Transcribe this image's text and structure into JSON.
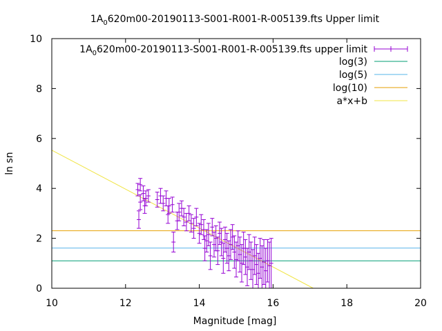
{
  "chart_data": {
    "type": "scatter",
    "title": {
      "prefix": "1A",
      "subscript": "0",
      "suffix": "620m00-20190113-S001-R001-R-005139.fts Upper limit"
    },
    "xlabel": "Magnitude [mag]",
    "ylabel": "ln sn",
    "xlim": [
      10,
      20
    ],
    "ylim": [
      0,
      10
    ],
    "x_ticks": [
      10,
      12,
      14,
      16,
      18,
      20
    ],
    "y_ticks": [
      0,
      2,
      4,
      6,
      8,
      10
    ],
    "grid": false,
    "legend_position": "top-right",
    "series": [
      {
        "name": {
          "prefix": "1A",
          "subscript": "0",
          "suffix": "620m00-20190113-S001-R001-R-005139.fts upper limit"
        },
        "kind": "errorbar",
        "color": "#9400d3",
        "points": [
          [
            12.33,
            3.95,
            0.25
          ],
          [
            12.4,
            4.15,
            0.25
          ],
          [
            12.36,
            2.75,
            0.35
          ],
          [
            12.4,
            3.45,
            0.3
          ],
          [
            12.48,
            3.8,
            0.3
          ],
          [
            12.55,
            3.6,
            0.3
          ],
          [
            12.62,
            3.7,
            0.25
          ],
          [
            12.52,
            3.3,
            0.3
          ],
          [
            12.86,
            3.55,
            0.3
          ],
          [
            12.95,
            3.7,
            0.3
          ],
          [
            13.02,
            3.4,
            0.3
          ],
          [
            13.1,
            3.6,
            0.3
          ],
          [
            13.18,
            3.3,
            0.3
          ],
          [
            13.15,
            2.95,
            0.35
          ],
          [
            13.27,
            3.35,
            0.3
          ],
          [
            13.3,
            1.85,
            0.4
          ],
          [
            13.4,
            2.7,
            0.35
          ],
          [
            13.45,
            3.05,
            0.35
          ],
          [
            13.52,
            3.2,
            0.3
          ],
          [
            13.58,
            2.85,
            0.35
          ],
          [
            13.65,
            2.65,
            0.35
          ],
          [
            13.72,
            3.0,
            0.3
          ],
          [
            13.78,
            2.6,
            0.35
          ],
          [
            13.85,
            2.4,
            0.4
          ],
          [
            13.92,
            2.85,
            0.35
          ],
          [
            14.0,
            2.2,
            0.4
          ],
          [
            14.05,
            2.55,
            0.4
          ],
          [
            14.12,
            2.35,
            0.4
          ],
          [
            14.15,
            1.6,
            0.5
          ],
          [
            14.2,
            1.9,
            0.45
          ],
          [
            14.25,
            2.15,
            0.45
          ],
          [
            14.3,
            1.3,
            0.55
          ],
          [
            14.35,
            2.45,
            0.35
          ],
          [
            14.4,
            1.75,
            0.5
          ],
          [
            14.45,
            2.0,
            0.5
          ],
          [
            14.5,
            1.5,
            0.55
          ],
          [
            14.55,
            2.2,
            0.45
          ],
          [
            14.6,
            1.85,
            0.55
          ],
          [
            14.65,
            1.2,
            0.6
          ],
          [
            14.7,
            1.95,
            0.5
          ],
          [
            14.75,
            1.6,
            0.6
          ],
          [
            14.8,
            1.3,
            0.6
          ],
          [
            14.85,
            1.75,
            0.6
          ],
          [
            14.9,
            2.05,
            0.5
          ],
          [
            14.95,
            1.45,
            0.65
          ],
          [
            15.0,
            1.15,
            0.7
          ],
          [
            15.05,
            1.7,
            0.6
          ],
          [
            15.1,
            1.35,
            0.7
          ],
          [
            15.15,
            1.0,
            0.75
          ],
          [
            15.2,
            1.6,
            0.65
          ],
          [
            15.25,
            1.25,
            0.7
          ],
          [
            15.3,
            0.85,
            0.75
          ],
          [
            15.35,
            1.45,
            0.7
          ],
          [
            15.4,
            1.1,
            0.75
          ],
          [
            15.45,
            0.75,
            0.8
          ],
          [
            15.5,
            1.3,
            0.75
          ],
          [
            15.55,
            0.95,
            0.8
          ],
          [
            15.6,
            0.6,
            0.8
          ],
          [
            15.65,
            1.2,
            0.8
          ],
          [
            15.7,
            0.85,
            0.85
          ],
          [
            15.75,
            1.05,
            0.9
          ],
          [
            15.8,
            0.7,
            0.9
          ],
          [
            15.85,
            1.1,
            0.85
          ],
          [
            15.9,
            0.9,
            0.95
          ],
          [
            15.95,
            1.0,
            1.0
          ]
        ]
      },
      {
        "name": "log(3)",
        "kind": "hline",
        "value": 1.0986,
        "color": "#009e73"
      },
      {
        "name": "log(5)",
        "kind": "hline",
        "value": 1.6094,
        "color": "#56b4e9"
      },
      {
        "name": "log(10)",
        "kind": "hline",
        "value": 2.3026,
        "color": "#e69f00"
      },
      {
        "name": "a*x+b",
        "kind": "fit",
        "slope": -0.78,
        "intercept": 13.33,
        "color": "#f0e442"
      }
    ]
  }
}
